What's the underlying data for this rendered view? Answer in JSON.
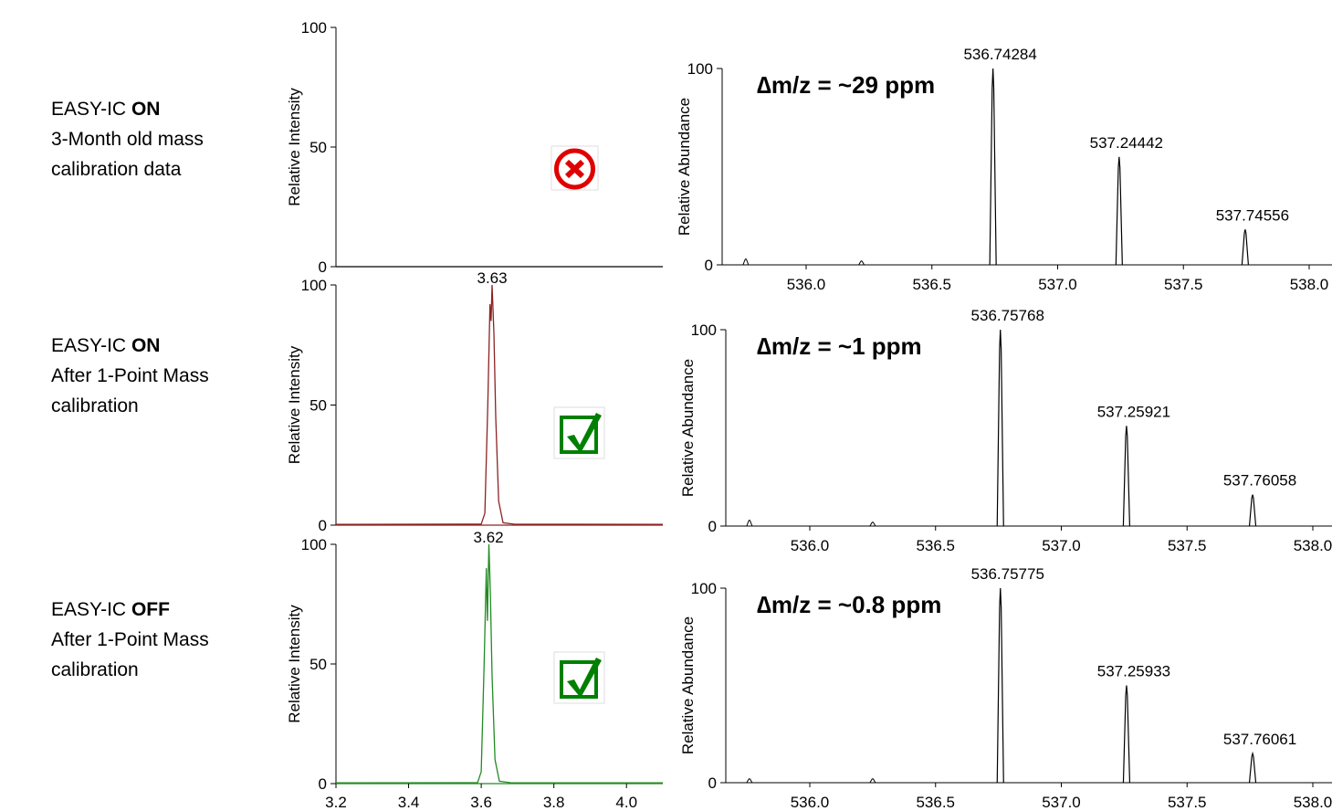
{
  "rows": [
    {
      "label": {
        "prefix": "EASY-IC ",
        "state": "ON",
        "line2": "3-Month old mass",
        "line3": "calibration data"
      },
      "chromatogram": {
        "type": "line",
        "ylabel": "Relative Intensity",
        "ylim": [
          0,
          100
        ],
        "yticks": [
          0,
          50,
          100
        ],
        "xlim": [
          3.2,
          4.1
        ],
        "xticks": [],
        "apex_label": "",
        "apex": null,
        "color": "#000000",
        "status": "fail"
      },
      "spectrum": {
        "type": "line",
        "ylabel": "Relative Abundance",
        "ylim": [
          0,
          100
        ],
        "yticks": [
          0,
          100
        ],
        "xlim": [
          535.7,
          538.1
        ],
        "xticks": [
          "536.0",
          "536.5",
          "537.0",
          "537.5",
          "538.0"
        ],
        "delta": "∆m/z = ~29 ppm",
        "peaks": [
          {
            "mz": 536.74284,
            "rel": 100,
            "label": "536.74284"
          },
          {
            "mz": 537.24442,
            "rel": 55,
            "label": "537.24442"
          },
          {
            "mz": 537.74556,
            "rel": 18,
            "label": "537.74556"
          }
        ],
        "minor": [
          {
            "mz": 535.76,
            "rel": 3
          },
          {
            "mz": 536.22,
            "rel": 2
          }
        ]
      }
    },
    {
      "label": {
        "prefix": "EASY-IC ",
        "state": "ON",
        "line2": "After 1-Point Mass",
        "line3": "calibration"
      },
      "chromatogram": {
        "type": "line",
        "ylabel": "Relative Intensity",
        "ylim": [
          0,
          100
        ],
        "yticks": [
          0,
          50,
          100
        ],
        "xlim": [
          3.2,
          4.1
        ],
        "xticks": [],
        "apex_label": "3.63",
        "apex": 3.63,
        "color": "#8b2323",
        "status": "pass"
      },
      "spectrum": {
        "type": "line",
        "ylabel": "Relative Abundance",
        "ylim": [
          0,
          100
        ],
        "yticks": [
          0,
          100
        ],
        "xlim": [
          535.7,
          538.1
        ],
        "xticks": [
          "536.0",
          "536.5",
          "537.0",
          "537.5",
          "538.0"
        ],
        "delta": "∆m/z = ~1 ppm",
        "peaks": [
          {
            "mz": 536.75768,
            "rel": 100,
            "label": "536.75768"
          },
          {
            "mz": 537.25921,
            "rel": 51,
            "label": "537.25921"
          },
          {
            "mz": 537.76058,
            "rel": 16,
            "label": "537.76058"
          }
        ],
        "minor": [
          {
            "mz": 535.76,
            "rel": 3
          },
          {
            "mz": 536.25,
            "rel": 2
          }
        ]
      }
    },
    {
      "label": {
        "prefix": "EASY-IC ",
        "state": "OFF",
        "line2": "After 1-Point Mass",
        "line3": "calibration"
      },
      "chromatogram": {
        "type": "line",
        "ylabel": "Relative Intensity",
        "ylim": [
          0,
          100
        ],
        "yticks": [
          0,
          50,
          100
        ],
        "xlim": [
          3.2,
          4.1
        ],
        "xticks": [
          "3.2",
          "3.4",
          "3.6",
          "3.8",
          "4.0"
        ],
        "apex_label": "3.62",
        "apex": 3.62,
        "color": "#228b22",
        "status": "pass"
      },
      "spectrum": {
        "type": "line",
        "ylabel": "Relative Abundance",
        "ylim": [
          0,
          100
        ],
        "yticks": [
          0,
          100
        ],
        "xlim": [
          535.7,
          538.1
        ],
        "xticks": [
          "536.0",
          "536.5",
          "537.0",
          "537.5",
          "538.0"
        ],
        "delta": "∆m/z = ~0.8 ppm",
        "peaks": [
          {
            "mz": 536.75775,
            "rel": 100,
            "label": "536.75775"
          },
          {
            "mz": 537.25933,
            "rel": 50,
            "label": "537.25933"
          },
          {
            "mz": 537.76061,
            "rel": 15,
            "label": "537.76061"
          }
        ],
        "minor": [
          {
            "mz": 535.76,
            "rel": 2
          },
          {
            "mz": 536.25,
            "rel": 2
          }
        ]
      }
    }
  ],
  "status_colors": {
    "fail": "#e00000",
    "pass": "#008000"
  },
  "status_icons": {
    "fail": "error-x-icon",
    "pass": "checkbox-check-icon"
  }
}
